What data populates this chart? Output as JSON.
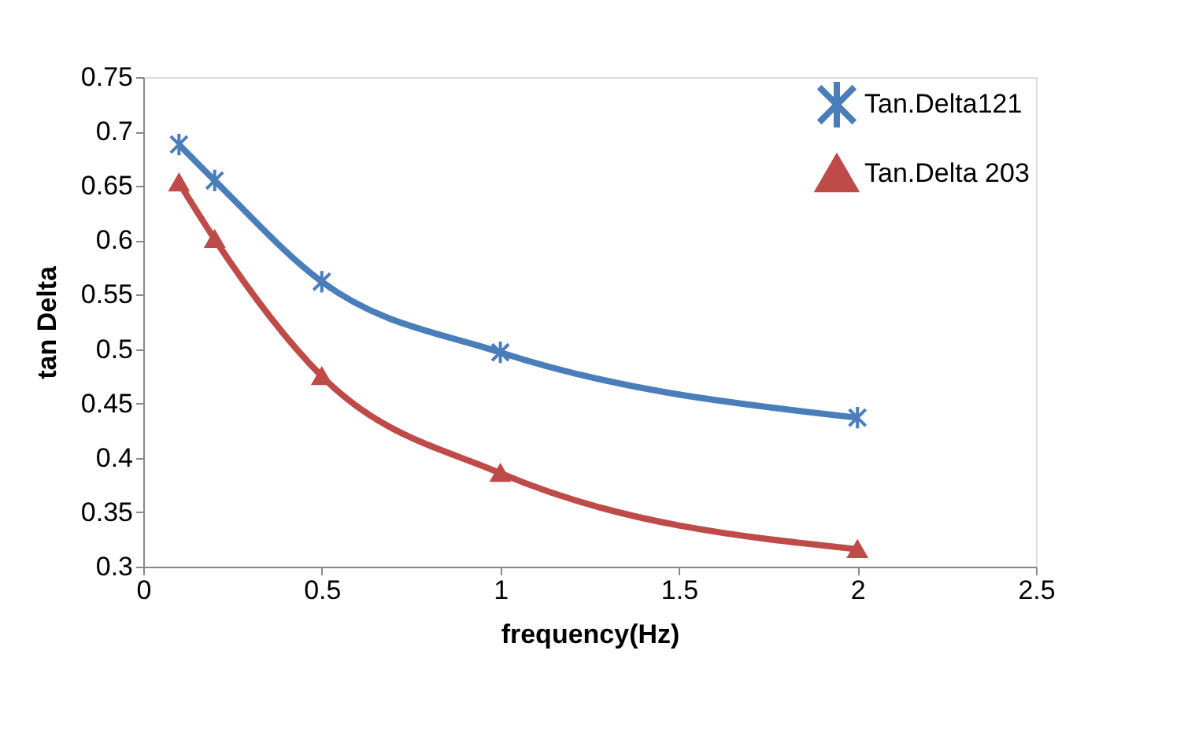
{
  "chart_data": {
    "type": "line",
    "xlabel": "frequency(Hz)",
    "ylabel": "tan Delta",
    "x": [
      0.1,
      0.2,
      0.5,
      1,
      2
    ],
    "series": [
      {
        "name": "Tan.Delta121",
        "color": "#4a7ebb",
        "marker": "cross",
        "values": [
          0.688,
          0.655,
          0.562,
          0.497,
          0.437
        ]
      },
      {
        "name": "Tan.Delta 203",
        "color": "#be4b48",
        "marker": "triangle",
        "values": [
          0.653,
          0.601,
          0.475,
          0.386,
          0.316
        ]
      }
    ],
    "xlim": [
      0,
      2.5
    ],
    "xticks": [
      0,
      0.5,
      1,
      1.5,
      2,
      2.5
    ],
    "ylim": [
      0.3,
      0.75
    ],
    "yticks": [
      0.3,
      0.35,
      0.4,
      0.45,
      0.5,
      0.55,
      0.6,
      0.65,
      0.7,
      0.75
    ],
    "grid": false,
    "legend": "top right",
    "line_style": "solid"
  }
}
